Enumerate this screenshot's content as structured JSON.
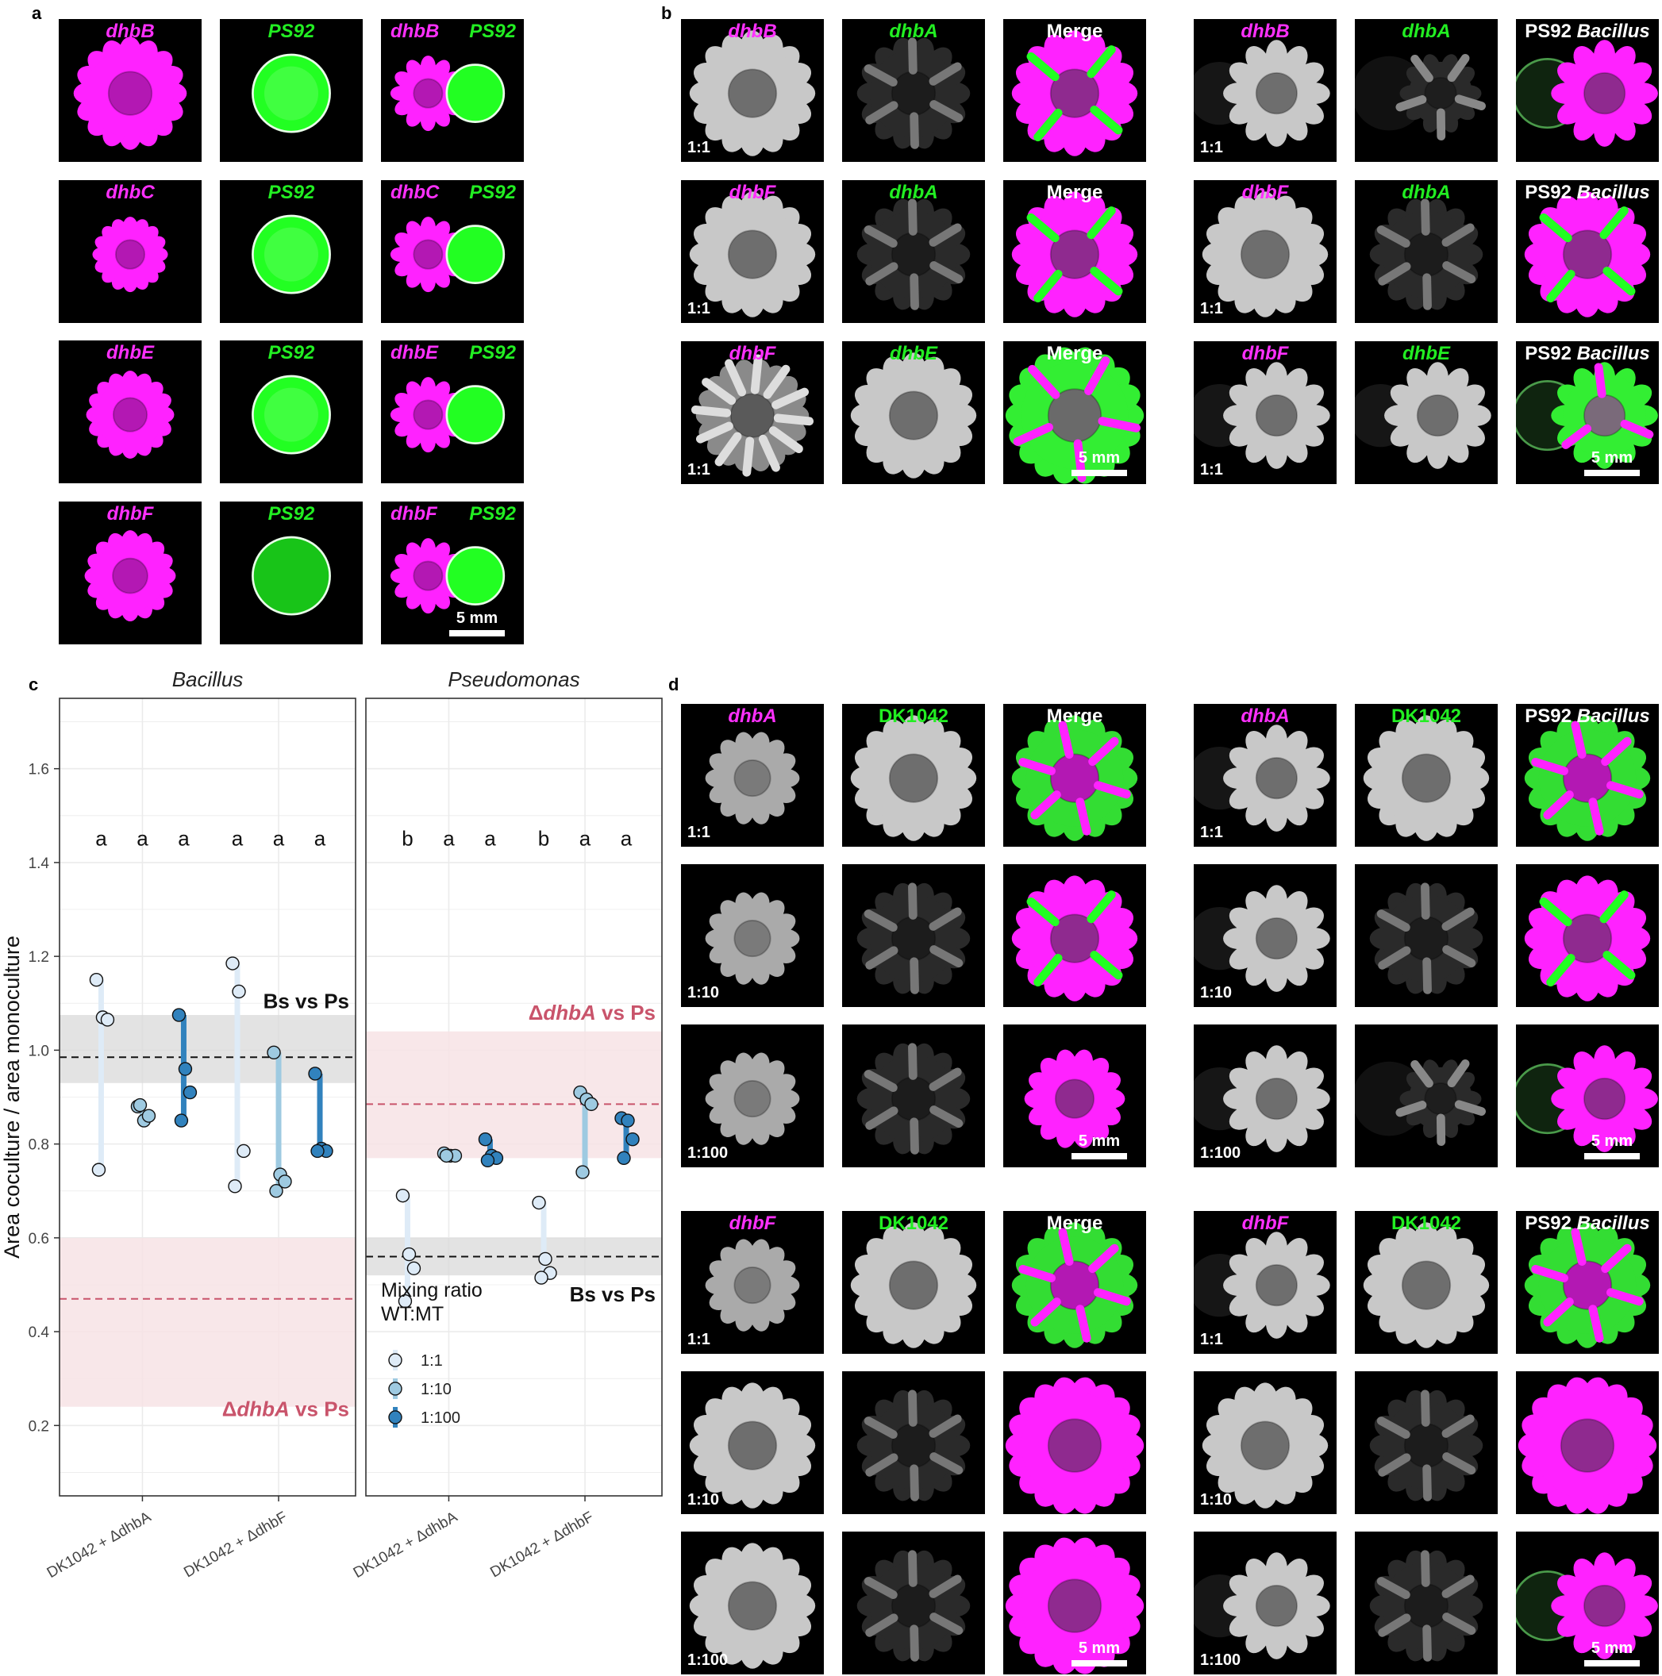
{
  "panels": {
    "a": "a",
    "b": "b",
    "c": "c",
    "d": "d"
  },
  "a": {
    "rows": [
      {
        "mut": "dhbB",
        "wt": "PS92"
      },
      {
        "mut": "dhbC",
        "wt": "PS92"
      },
      {
        "mut": "dhbE",
        "wt": "PS92"
      },
      {
        "mut": "dhbF",
        "wt": "PS92"
      }
    ],
    "scalebar": "5 mm"
  },
  "b": {
    "rows": [
      {
        "mag": "dhbB",
        "grn": "dhbA",
        "ratio": "1:1"
      },
      {
        "mag": "dhbF",
        "grn": "dhbA",
        "ratio": "1:1"
      },
      {
        "mag": "dhbF",
        "grn": "dhbE",
        "ratio": "1:1"
      }
    ],
    "merge": "Merge",
    "ps92": "PS92",
    "bacillus": "Bacillus",
    "scalebar": "5 mm"
  },
  "d": {
    "groups": [
      {
        "mag": "dhbA",
        "grn": "DK1042",
        "ratios": [
          "1:1",
          "1:10",
          "1:100"
        ]
      },
      {
        "mag": "dhbF",
        "grn": "DK1042",
        "ratios": [
          "1:1",
          "1:10",
          "1:100"
        ]
      }
    ],
    "merge": "Merge",
    "ps92": "PS92",
    "bacillus": "Bacillus",
    "scalebar": "5 mm"
  },
  "chart_data": {
    "type": "scatter",
    "ylabel": "Area coculture / area monoculture",
    "ylim": [
      0.05,
      1.75
    ],
    "yticks": [
      0.2,
      0.4,
      0.6,
      0.8,
      1.0,
      1.2,
      1.4,
      1.6
    ],
    "ytick_labels": [
      "0.2",
      "0.4",
      "0.6",
      "0.8",
      "1.0",
      "1.2",
      "1.4",
      "1.6"
    ],
    "categories": [
      "DK1042 + ΔdhbA",
      "DK1042 + ΔdhbF"
    ],
    "legend": {
      "title1": "Mixing ratio",
      "title2": "WT:MT",
      "entries": [
        "1:1",
        "1:10",
        "1:100"
      ],
      "colors": [
        "#deebf7",
        "#9ecae1",
        "#3182bd"
      ]
    },
    "facets": [
      {
        "title": "Bacillus",
        "letters": [
          "a",
          "a",
          "a",
          "a",
          "a",
          "a"
        ],
        "ref_gray": {
          "label": "Bs vs Ps",
          "mean": 0.985,
          "lo": 0.93,
          "hi": 1.075
        },
        "ref_pink": {
          "label_prefix": "Δ",
          "label_italic": "dhbA",
          "label_suffix": " vs Ps",
          "mean": 0.47,
          "lo": 0.24,
          "hi": 0.6
        },
        "groups": [
          {
            "ratio": "1:1",
            "values": [
              1.15,
              1.07,
              1.065,
              0.745
            ]
          },
          {
            "ratio": "1:10",
            "values": [
              0.88,
              0.85,
              0.86,
              0.883
            ]
          },
          {
            "ratio": "1:100",
            "values": [
              1.075,
              0.96,
              0.91,
              0.85
            ]
          },
          {
            "ratio": "1:1",
            "values": [
              1.185,
              1.125,
              0.785,
              0.71
            ]
          },
          {
            "ratio": "1:10",
            "values": [
              0.995,
              0.735,
              0.72,
              0.7
            ]
          },
          {
            "ratio": "1:100",
            "values": [
              0.95,
              0.79,
              0.785,
              0.785
            ]
          }
        ]
      },
      {
        "title": "Pseudomonas",
        "letters": [
          "b",
          "a",
          "a",
          "b",
          "a",
          "a"
        ],
        "ref_gray": {
          "label": "Bs vs Ps",
          "mean": 0.56,
          "lo": 0.52,
          "hi": 0.6
        },
        "ref_pink": {
          "label_prefix": "Δ",
          "label_italic": "dhbA",
          "label_suffix": " vs Ps",
          "mean": 0.885,
          "lo": 0.77,
          "hi": 1.04
        },
        "groups": [
          {
            "ratio": "1:1",
            "values": [
              0.69,
              0.565,
              0.535,
              0.465
            ]
          },
          {
            "ratio": "1:10",
            "values": [
              0.78,
              0.775,
              0.775,
              0.775
            ]
          },
          {
            "ratio": "1:100",
            "values": [
              0.81,
              0.775,
              0.77,
              0.765
            ]
          },
          {
            "ratio": "1:1",
            "values": [
              0.675,
              0.555,
              0.525,
              0.515
            ]
          },
          {
            "ratio": "1:10",
            "values": [
              0.91,
              0.895,
              0.885,
              0.74
            ]
          },
          {
            "ratio": "1:100",
            "values": [
              0.855,
              0.85,
              0.81,
              0.77
            ]
          }
        ]
      }
    ]
  }
}
